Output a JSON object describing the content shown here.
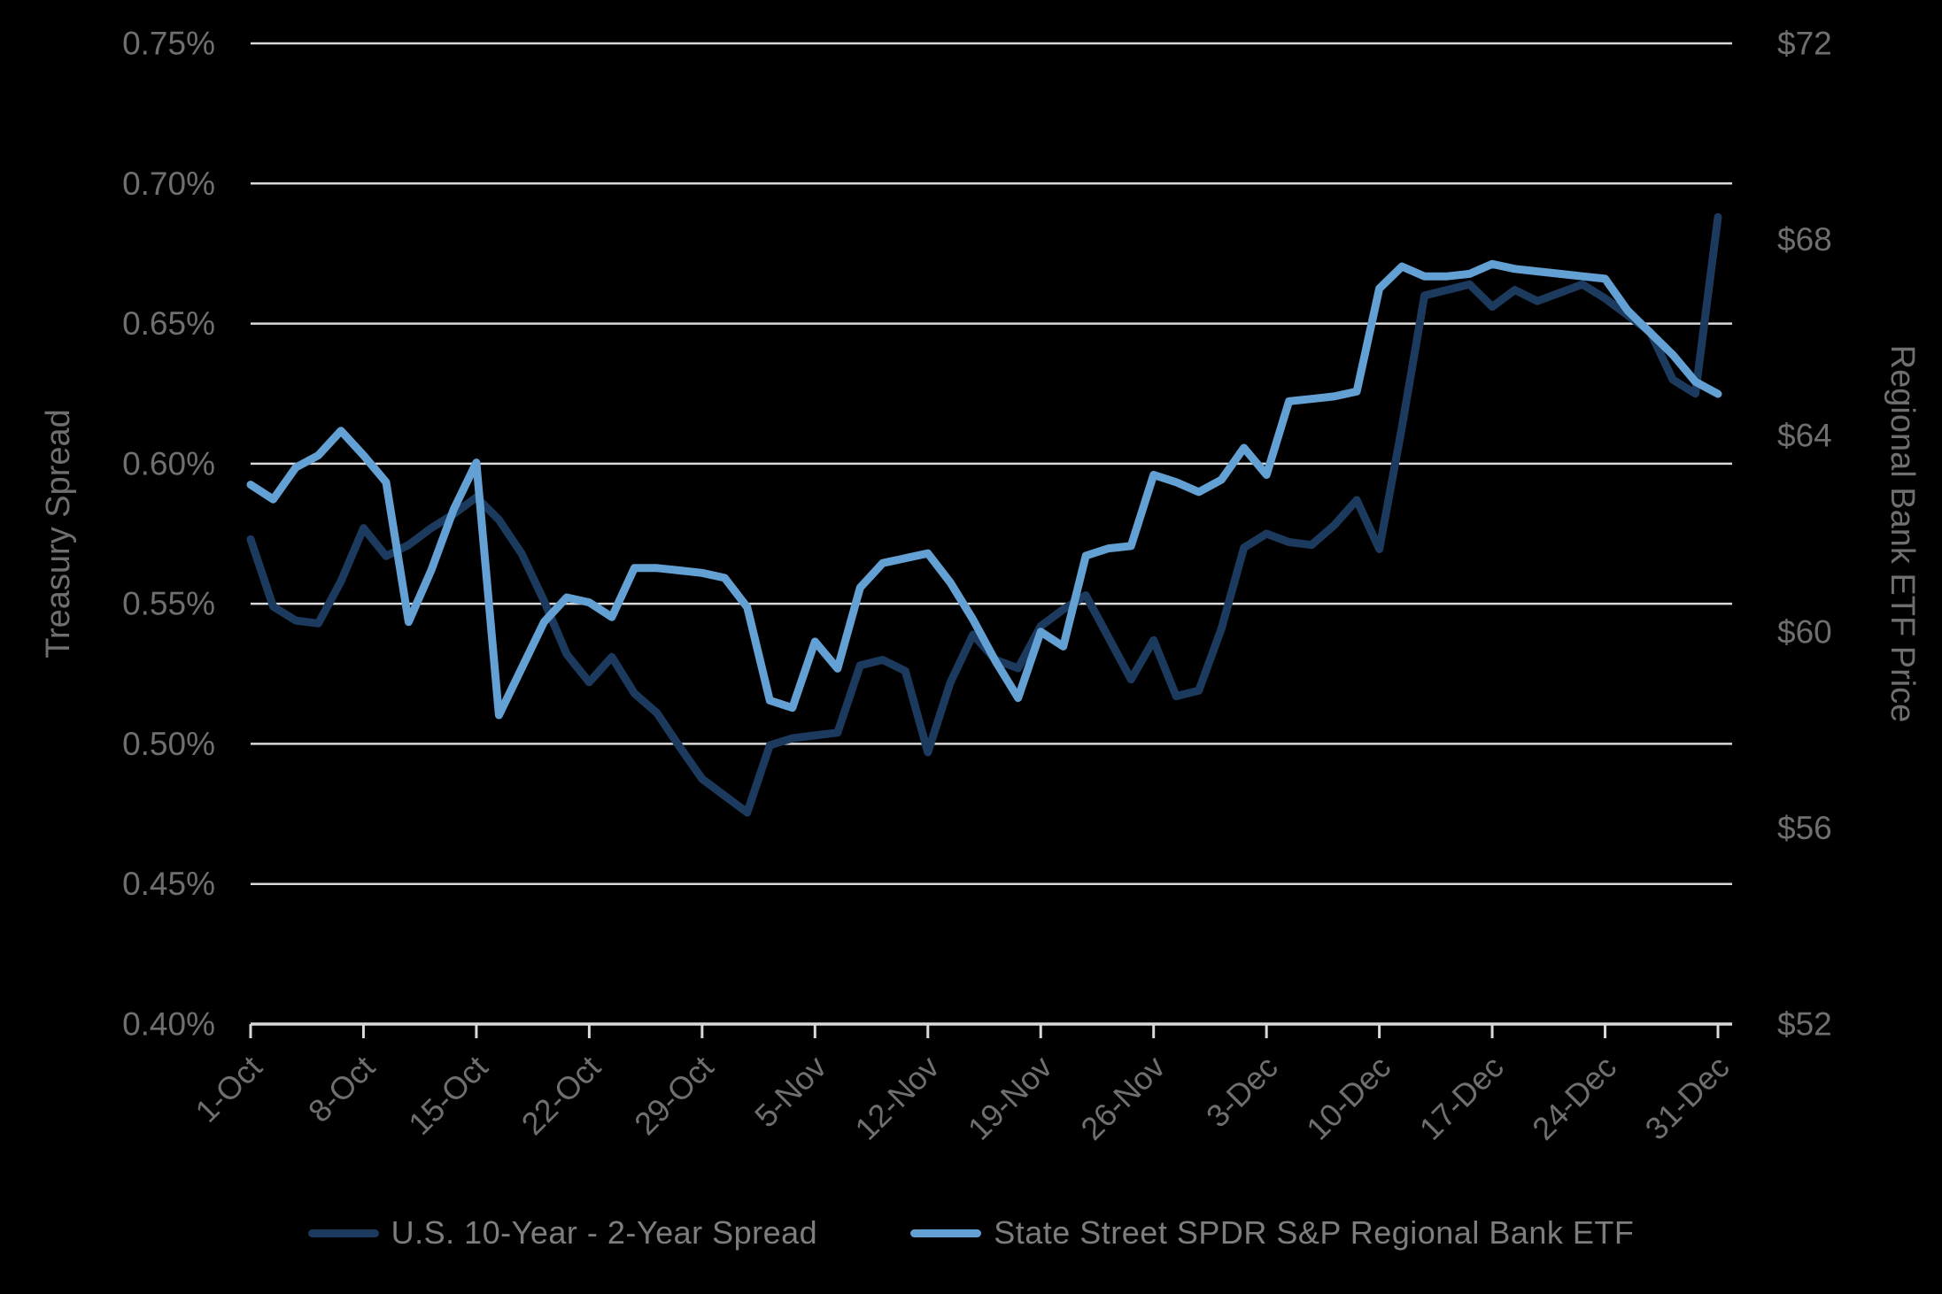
{
  "chart_data": {
    "type": "line",
    "title": "",
    "categories": [
      "1-Oct",
      "2-Oct",
      "3-Oct",
      "4-Oct",
      "7-Oct",
      "8-Oct",
      "9-Oct",
      "10-Oct",
      "11-Oct",
      "14-Oct",
      "15-Oct",
      "16-Oct",
      "17-Oct",
      "18-Oct",
      "21-Oct",
      "22-Oct",
      "23-Oct",
      "24-Oct",
      "25-Oct",
      "28-Oct",
      "29-Oct",
      "30-Oct",
      "31-Oct",
      "1-Nov",
      "4-Nov",
      "5-Nov",
      "6-Nov",
      "7-Nov",
      "8-Nov",
      "11-Nov",
      "12-Nov",
      "13-Nov",
      "14-Nov",
      "15-Nov",
      "18-Nov",
      "19-Nov",
      "20-Nov",
      "21-Nov",
      "22-Nov",
      "25-Nov",
      "26-Nov",
      "27-Nov",
      "28-Nov",
      "29-Nov",
      "2-Dec",
      "3-Dec",
      "4-Dec",
      "5-Dec",
      "6-Dec",
      "9-Dec",
      "10-Dec",
      "11-Dec",
      "12-Dec",
      "13-Dec",
      "16-Dec",
      "17-Dec",
      "18-Dec",
      "19-Dec",
      "20-Dec",
      "23-Dec",
      "24-Dec",
      "25-Dec",
      "26-Dec",
      "27-Dec",
      "30-Dec",
      "31-Dec"
    ],
    "x_axis": {
      "tick_labels": [
        "1-Oct",
        "8-Oct",
        "15-Oct",
        "22-Oct",
        "29-Oct",
        "5-Nov",
        "12-Nov",
        "19-Nov",
        "26-Nov",
        "3-Dec",
        "10-Dec",
        "17-Dec",
        "24-Dec",
        "31-Dec"
      ],
      "tick_every": 5
    },
    "left_axis": {
      "label": "Treasury Spread",
      "min": 0.4,
      "max": 0.75,
      "step": 0.05,
      "tick_labels": [
        "0.40%",
        "0.45%",
        "0.50%",
        "0.55%",
        "0.60%",
        "0.65%",
        "0.70%",
        "0.75%"
      ]
    },
    "right_axis": {
      "label": "Regional Bank ETF Price",
      "min": 52,
      "max": 72,
      "step": 4,
      "tick_labels": [
        "$52",
        "$56",
        "$60",
        "$64",
        "$68",
        "$72"
      ]
    },
    "series": [
      {
        "name": "U.S. 10-Year - 2-Year Spread",
        "axis": "left",
        "color": "#1c3a5e",
        "values": [
          0.573,
          0.549,
          0.544,
          0.543,
          0.558,
          0.577,
          0.567,
          0.571,
          0.577,
          0.582,
          0.588,
          0.58,
          0.568,
          0.551,
          0.532,
          0.522,
          0.531,
          0.518,
          0.511,
          0.499,
          0.4875,
          0.4815,
          0.4755,
          0.4995,
          0.502,
          0.503,
          0.504,
          0.528,
          0.53,
          0.526,
          0.497,
          0.522,
          0.539,
          0.53,
          0.527,
          0.542,
          0.548,
          0.553,
          0.538,
          0.523,
          0.537,
          0.517,
          0.519,
          0.541,
          0.57,
          0.575,
          0.572,
          0.571,
          0.578,
          0.587,
          0.5695,
          0.613,
          0.66,
          0.662,
          0.664,
          0.656,
          0.662,
          0.658,
          0.661,
          0.664,
          0.659,
          0.653,
          0.647,
          0.63,
          0.625,
          0.688
        ]
      },
      {
        "name": "State Street SPDR S&P Regional Bank ETF",
        "axis": "right",
        "color": "#63a0d4",
        "values": [
          63.0,
          62.7,
          63.35,
          63.6,
          64.1,
          63.6,
          63.05,
          60.2,
          61.25,
          62.5,
          63.45,
          58.3,
          59.25,
          60.2,
          60.7,
          60.6,
          60.3,
          61.3,
          61.3,
          61.25,
          61.2,
          61.1,
          60.5,
          58.6,
          58.45,
          59.8,
          59.25,
          60.9,
          61.4,
          61.5,
          61.6,
          61.0,
          60.25,
          59.4,
          58.65,
          60.0,
          59.7,
          61.55,
          61.7,
          61.75,
          63.2,
          63.05,
          62.85,
          63.1,
          63.75,
          63.2,
          64.7,
          64.75,
          64.8,
          64.9,
          67.0,
          67.45,
          67.25,
          67.25,
          67.3,
          67.5,
          67.4,
          67.35,
          67.3,
          67.25,
          67.2,
          66.55,
          66.1,
          65.65,
          65.1,
          64.85
        ]
      }
    ],
    "grid": true,
    "legend_position": "bottom",
    "colors": {
      "background": "#000000",
      "gridline": "#d9d9d9",
      "axis_line": "#d9d9d9",
      "axis_text": "#6f6f6f",
      "axis_title_text": "#6f6f6f",
      "legend_text": "#7d7d7d"
    }
  }
}
